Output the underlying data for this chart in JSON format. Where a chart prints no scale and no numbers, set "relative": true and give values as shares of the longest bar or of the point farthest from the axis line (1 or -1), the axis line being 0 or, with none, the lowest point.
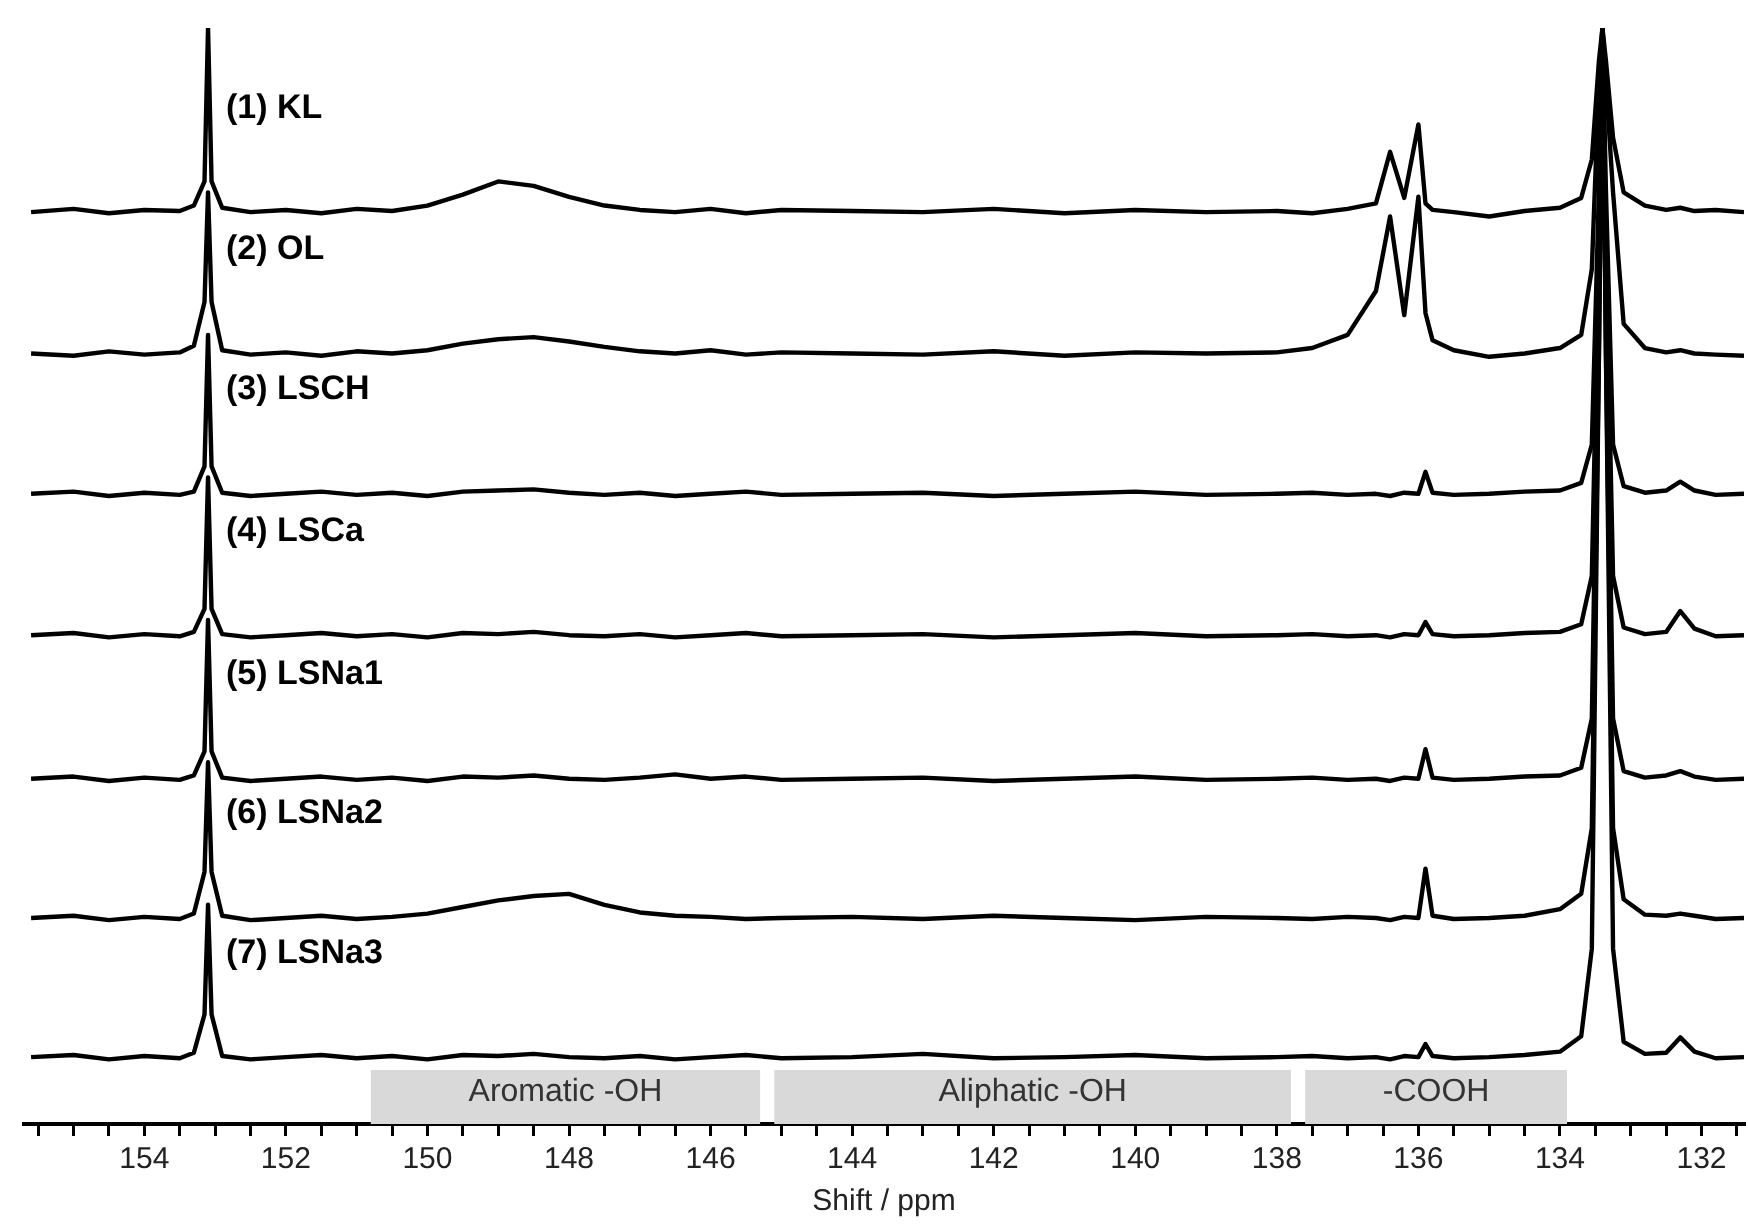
{
  "chart_data": {
    "type": "line",
    "relative": true,
    "xlabel": "Shift / ppm",
    "legend": false,
    "grid": false,
    "marker": "none",
    "line_style": "solid",
    "xlim": [
      155.7,
      131.4
    ],
    "xticks": [
      {
        "value": 155.5,
        "label": null
      },
      {
        "value": 155,
        "label": null
      },
      {
        "value": 154.5,
        "label": null
      },
      154,
      {
        "value": 153.5,
        "label": null
      },
      {
        "value": 153,
        "label": null
      },
      {
        "value": 152.5,
        "label": null
      },
      152,
      {
        "value": 151.5,
        "label": null
      },
      {
        "value": 151,
        "label": null
      },
      {
        "value": 150.5,
        "label": null
      },
      150,
      {
        "value": 149.5,
        "label": null
      },
      {
        "value": 149,
        "label": null
      },
      {
        "value": 148.5,
        "label": null
      },
      148,
      {
        "value": 147.5,
        "label": null
      },
      {
        "value": 147,
        "label": null
      },
      {
        "value": 146.5,
        "label": null
      },
      146,
      {
        "value": 145.5,
        "label": null
      },
      {
        "value": 145,
        "label": null
      },
      {
        "value": 144.5,
        "label": null
      },
      144,
      {
        "value": 143.5,
        "label": null
      },
      {
        "value": 143,
        "label": null
      },
      {
        "value": 142.5,
        "label": null
      },
      142,
      {
        "value": 141.5,
        "label": null
      },
      {
        "value": 141,
        "label": null
      },
      {
        "value": 140.5,
        "label": null
      },
      140,
      {
        "value": 139.5,
        "label": null
      },
      {
        "value": 139,
        "label": null
      },
      {
        "value": 138.5,
        "label": null
      },
      138,
      {
        "value": 137.5,
        "label": null
      },
      {
        "value": 137,
        "label": null
      },
      {
        "value": 136.5,
        "label": null
      },
      136,
      {
        "value": 135.5,
        "label": null
      },
      {
        "value": 135,
        "label": null
      },
      {
        "value": 134.5,
        "label": null
      },
      134,
      {
        "value": 133.5,
        "label": null
      },
      {
        "value": 133,
        "label": null
      },
      {
        "value": 132.5,
        "label": null
      },
      132,
      {
        "value": 131.5,
        "label": null
      }
    ],
    "x": [
      155.6,
      155,
      154.5,
      154,
      153.5,
      153.3,
      153.15,
      153.1,
      153.05,
      152.9,
      152.5,
      152,
      151.5,
      151,
      150.5,
      150,
      149.5,
      149,
      148.5,
      148,
      147.5,
      147,
      146.5,
      146,
      145.5,
      145,
      144,
      143,
      142,
      141,
      140,
      139,
      138,
      137.5,
      137,
      136.6,
      136.4,
      136.2,
      136.0,
      135.9,
      135.8,
      135.5,
      135,
      134.5,
      134,
      133.7,
      133.55,
      133.45,
      133.4,
      133.35,
      133.25,
      133.1,
      132.8,
      132.5,
      132.3,
      132.1,
      131.8,
      131.4
    ],
    "bands": [
      {
        "axis": "x",
        "from": 150.8,
        "to": 145.3,
        "label": "Aromatic -OH",
        "color": "#d9d9d9"
      },
      {
        "axis": "x",
        "from": 145.1,
        "to": 137.8,
        "label": "Aliphatic -OH",
        "color": "#d9d9d9"
      },
      {
        "axis": "x",
        "from": 137.6,
        "to": 133.9,
        "label": "-COOH",
        "color": "#d9d9d9"
      }
    ],
    "series": [
      {
        "name": "(1) KL",
        "color": "#000000",
        "values": [
          0.832,
          0.835,
          0.831,
          0.834,
          0.833,
          0.838,
          0.86,
          1,
          0.86,
          0.836,
          0.832,
          0.834,
          0.831,
          0.835,
          0.833,
          0.838,
          0.848,
          0.86,
          0.856,
          0.846,
          0.838,
          0.834,
          0.832,
          0.835,
          0.831,
          0.834,
          0.833,
          0.832,
          0.835,
          0.831,
          0.834,
          0.832,
          0.833,
          0.831,
          0.835,
          0.84,
          0.887,
          0.845,
          0.912,
          0.84,
          0.834,
          0.832,
          0.828,
          0.833,
          0.836,
          0.845,
          0.88,
          0.97,
          1,
          0.97,
          0.9,
          0.85,
          0.838,
          0.834,
          0.836,
          0.833,
          0.834,
          0.832
        ]
      },
      {
        "name": "(2) OL",
        "color": "#000000",
        "values": [
          0.703,
          0.701,
          0.705,
          0.702,
          0.704,
          0.71,
          0.75,
          0.85,
          0.75,
          0.706,
          0.702,
          0.704,
          0.701,
          0.705,
          0.703,
          0.706,
          0.712,
          0.716,
          0.718,
          0.714,
          0.709,
          0.705,
          0.703,
          0.706,
          0.702,
          0.704,
          0.703,
          0.702,
          0.705,
          0.701,
          0.704,
          0.703,
          0.704,
          0.708,
          0.72,
          0.76,
          0.828,
          0.738,
          0.846,
          0.74,
          0.715,
          0.706,
          0.7,
          0.703,
          0.708,
          0.72,
          0.78,
          0.95,
          1,
          0.95,
          0.85,
          0.73,
          0.708,
          0.704,
          0.706,
          0.703,
          0.702,
          0.701
        ]
      },
      {
        "name": "(3) LSCH",
        "color": "#000000",
        "values": [
          0.575,
          0.577,
          0.573,
          0.576,
          0.574,
          0.577,
          0.6,
          0.72,
          0.6,
          0.576,
          0.573,
          0.575,
          0.577,
          0.574,
          0.576,
          0.573,
          0.577,
          0.578,
          0.579,
          0.576,
          0.574,
          0.576,
          0.573,
          0.575,
          0.577,
          0.574,
          0.575,
          0.576,
          0.573,
          0.575,
          0.577,
          0.574,
          0.575,
          0.576,
          0.574,
          0.575,
          0.573,
          0.576,
          0.575,
          0.595,
          0.576,
          0.574,
          0.575,
          0.577,
          0.578,
          0.585,
          0.62,
          0.85,
          1,
          0.85,
          0.62,
          0.582,
          0.576,
          0.578,
          0.586,
          0.578,
          0.574,
          0.575
        ]
      },
      {
        "name": "(4) LSCa",
        "color": "#000000",
        "values": [
          0.446,
          0.448,
          0.444,
          0.447,
          0.445,
          0.449,
          0.47,
          0.59,
          0.47,
          0.447,
          0.444,
          0.446,
          0.448,
          0.445,
          0.447,
          0.444,
          0.448,
          0.447,
          0.449,
          0.446,
          0.445,
          0.447,
          0.444,
          0.446,
          0.448,
          0.445,
          0.446,
          0.447,
          0.444,
          0.446,
          0.448,
          0.445,
          0.446,
          0.447,
          0.445,
          0.446,
          0.444,
          0.447,
          0.446,
          0.458,
          0.447,
          0.445,
          0.446,
          0.448,
          0.449,
          0.456,
          0.5,
          0.8,
          1,
          0.8,
          0.5,
          0.453,
          0.447,
          0.449,
          0.468,
          0.452,
          0.445,
          0.446
        ]
      },
      {
        "name": "(5) LSNa1",
        "color": "#000000",
        "values": [
          0.315,
          0.317,
          0.313,
          0.316,
          0.314,
          0.318,
          0.34,
          0.46,
          0.34,
          0.316,
          0.313,
          0.315,
          0.317,
          0.314,
          0.316,
          0.313,
          0.317,
          0.316,
          0.318,
          0.315,
          0.314,
          0.316,
          0.319,
          0.315,
          0.317,
          0.314,
          0.315,
          0.316,
          0.313,
          0.315,
          0.317,
          0.314,
          0.315,
          0.316,
          0.314,
          0.315,
          0.313,
          0.316,
          0.315,
          0.342,
          0.316,
          0.314,
          0.315,
          0.317,
          0.318,
          0.325,
          0.37,
          0.75,
          1,
          0.75,
          0.37,
          0.322,
          0.316,
          0.318,
          0.322,
          0.317,
          0.314,
          0.315
        ]
      },
      {
        "name": "(6) LSNa2",
        "color": "#000000",
        "values": [
          0.188,
          0.19,
          0.186,
          0.189,
          0.187,
          0.192,
          0.23,
          0.33,
          0.23,
          0.19,
          0.186,
          0.188,
          0.19,
          0.187,
          0.189,
          0.192,
          0.198,
          0.204,
          0.208,
          0.21,
          0.2,
          0.193,
          0.19,
          0.189,
          0.187,
          0.188,
          0.189,
          0.187,
          0.19,
          0.188,
          0.186,
          0.189,
          0.188,
          0.187,
          0.189,
          0.188,
          0.186,
          0.189,
          0.188,
          0.233,
          0.19,
          0.187,
          0.188,
          0.19,
          0.196,
          0.21,
          0.27,
          0.7,
          1,
          0.7,
          0.27,
          0.205,
          0.191,
          0.19,
          0.192,
          0.19,
          0.187,
          0.188
        ]
      },
      {
        "name": "(7) LSNa3",
        "color": "#000000",
        "values": [
          0.061,
          0.063,
          0.059,
          0.062,
          0.06,
          0.065,
          0.1,
          0.2,
          0.1,
          0.062,
          0.059,
          0.061,
          0.063,
          0.06,
          0.062,
          0.059,
          0.063,
          0.062,
          0.064,
          0.061,
          0.06,
          0.062,
          0.059,
          0.061,
          0.063,
          0.06,
          0.061,
          0.064,
          0.06,
          0.061,
          0.063,
          0.06,
          0.061,
          0.062,
          0.06,
          0.061,
          0.059,
          0.062,
          0.061,
          0.073,
          0.062,
          0.06,
          0.061,
          0.063,
          0.066,
          0.08,
          0.16,
          0.7,
          1,
          0.7,
          0.16,
          0.075,
          0.064,
          0.065,
          0.079,
          0.066,
          0.06,
          0.061
        ]
      }
    ]
  }
}
